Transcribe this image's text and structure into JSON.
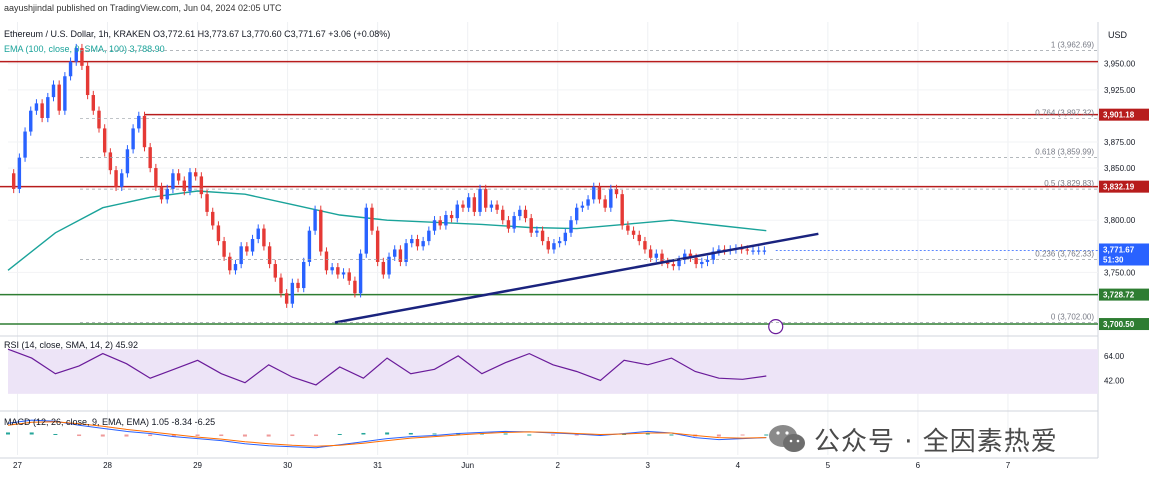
{
  "header": {
    "publisher": "aayushjindal published on TradingView.com, Jun 04, 2024 02:05 UTC",
    "symbol": "Ethereum / U.S. Dollar, 1h, KRAKEN O3,772.61 H3,773.67 L3,770.60 C3,771.67 +3.06 (+0.08%)",
    "ema": "EMA (100, close, 0, SMA, 100) 3,788.90",
    "rsi": "RSI (14, close, SMA, 14, 2) 45.92",
    "macd": "MACD (12, 26, close, 9, EMA, EMA) 1.05 -8.34 -6.25"
  },
  "currency": "USD",
  "colors": {
    "up": "#2962ff",
    "down": "#e53935",
    "resistance": "#b71c1c",
    "support": "#2e7d32",
    "ema": "#1aa39a",
    "trendline": "#1a237e",
    "rsi_line": "#6a1b9a",
    "rsi_band": "#ede4f7",
    "price_tag": "#2962ff"
  },
  "fib_levels": [
    {
      "label": "1 (3,962.69)",
      "price": 3962.69
    },
    {
      "label": "0.764 (3,897.32)",
      "price": 3897.32
    },
    {
      "label": "0.618 (3,859.99)",
      "price": 3859.99
    },
    {
      "label": "0.5 (3,829.83)",
      "price": 3829.83
    },
    {
      "label": "0.236 (3,762.33)",
      "price": 3762.33
    },
    {
      "label": "0 (3,702.00)",
      "price": 3702.0
    }
  ],
  "horizontal_levels": [
    {
      "kind": "resistance",
      "price": 3952,
      "tag": ""
    },
    {
      "kind": "resistance",
      "price": 3901.18,
      "tag": "3,901.18"
    },
    {
      "kind": "resistance",
      "price": 3832.19,
      "tag": "3,832.19"
    },
    {
      "kind": "support",
      "price": 3728.72,
      "tag": "3,728.72"
    },
    {
      "kind": "support",
      "price": 3700.5,
      "tag": "3,700.50"
    }
  ],
  "price_tag": {
    "value": "3,771.67",
    "sub": "51:30"
  },
  "watermark": "公众号 · 全因素热爱",
  "chart_data": {
    "type": "line",
    "title": "Ethereum / U.S. Dollar, 1h, KRAKEN",
    "xlabel": "",
    "ylabel": "USD",
    "x_ticks": [
      "27",
      "28",
      "29",
      "30",
      "31",
      "Jun",
      "2",
      "3",
      "4",
      "5",
      "6",
      "7"
    ],
    "y_ticks": [
      3950,
      3925,
      3875,
      3850,
      3800,
      3750
    ],
    "ylim": [
      3690,
      3990
    ],
    "grid": true,
    "series": [
      {
        "x": [
          0,
          0.06,
          0.12,
          0.18,
          0.24,
          0.3,
          0.36,
          0.42,
          0.48,
          0.54,
          0.6,
          0.66,
          0.72,
          0.78,
          0.84,
          0.9,
          0.96,
          1.02,
          1.08,
          1.14,
          1.2,
          1.26,
          1.32,
          1.38,
          1.44,
          1.5,
          1.56,
          1.62,
          1.68,
          1.74,
          1.8,
          1.86,
          1.92,
          1.98,
          2.04,
          2.1,
          2.16,
          2.22,
          2.28,
          2.34,
          2.4,
          2.46,
          2.52,
          2.58,
          2.64,
          2.7,
          2.76,
          2.82,
          2.88,
          2.94,
          3,
          3.06,
          3.12,
          3.18,
          3.24,
          3.3,
          3.36,
          3.42,
          3.48,
          3.54,
          3.6,
          3.66,
          3.72,
          3.78,
          3.84,
          3.9,
          3.96,
          4.02,
          4.08,
          4.14,
          4.2,
          4.26,
          4.32,
          4.38,
          4.44,
          4.5,
          4.56,
          4.62,
          4.68,
          4.74,
          4.8,
          4.86,
          4.92,
          4.98,
          5.04,
          5.1,
          5.16,
          5.22,
          5.28,
          5.34,
          5.4,
          5.46,
          5.52,
          5.58,
          5.64,
          5.7,
          5.76,
          5.82,
          5.88,
          5.94,
          6,
          6.06,
          6.12,
          6.18,
          6.24,
          6.3,
          6.36,
          6.42,
          6.48,
          6.54,
          6.6,
          6.66,
          6.72,
          6.78,
          6.84,
          6.9,
          6.96,
          7.02,
          7.08,
          7.14,
          7.2,
          7.26,
          7.32,
          7.38,
          7.44,
          7.5,
          7.56,
          7.62,
          7.68,
          7.74,
          7.8,
          7.86,
          7.92,
          7.98
        ],
        "values": [
          3845,
          3830,
          3860,
          3885,
          3905,
          3912,
          3898,
          3918,
          3930,
          3905,
          3938,
          3952,
          3965,
          3948,
          3920,
          3905,
          3888,
          3865,
          3848,
          3832,
          3845,
          3868,
          3888,
          3900,
          3870,
          3850,
          3832,
          3820,
          3830,
          3845,
          3838,
          3828,
          3846,
          3842,
          3825,
          3808,
          3795,
          3780,
          3765,
          3752,
          3758,
          3775,
          3770,
          3782,
          3792,
          3775,
          3758,
          3745,
          3730,
          3720,
          3740,
          3735,
          3760,
          3790,
          3810,
          3770,
          3752,
          3755,
          3748,
          3750,
          3742,
          3730,
          3768,
          3812,
          3790,
          3760,
          3748,
          3765,
          3772,
          3760,
          3778,
          3782,
          3775,
          3780,
          3790,
          3800,
          3795,
          3805,
          3802,
          3815,
          3812,
          3822,
          3808,
          3830,
          3812,
          3815,
          3810,
          3800,
          3792,
          3804,
          3810,
          3802,
          3788,
          3790,
          3780,
          3772,
          3778,
          3780,
          3788,
          3800,
          3812,
          3814,
          3820,
          3832,
          3820,
          3812,
          3830,
          3825,
          3795,
          3790,
          3786,
          3780,
          3772,
          3764,
          3768,
          3760,
          3758,
          3756,
          3762,
          3768,
          3764,
          3758,
          3760,
          3762,
          3770,
          3772,
          3771,
          3772,
          3773,
          3772,
          3771,
          3771,
          3771,
          3771
        ],
        "name": ""
      },
      {
        "x": [
          0,
          0.5,
          1,
          1.5,
          2,
          2.5,
          3,
          3.5,
          4,
          4.5,
          5,
          5.5,
          6,
          6.5,
          7,
          7.5,
          8
        ],
        "values": [
          3752,
          3788,
          3812,
          3822,
          3828,
          3825,
          3815,
          3805,
          3800,
          3798,
          3796,
          3793,
          3792,
          3796,
          3800,
          3795,
          3790
        ],
        "name": "EMA"
      }
    ],
    "rsi": {
      "ylim": [
        20,
        80
      ],
      "y_ticks": [
        64,
        42
      ],
      "x": [
        0,
        0.25,
        0.5,
        0.75,
        1,
        1.25,
        1.5,
        1.75,
        2,
        2.25,
        2.5,
        2.75,
        3,
        3.25,
        3.5,
        3.75,
        4,
        4.25,
        4.5,
        4.75,
        5,
        5.25,
        5.5,
        5.75,
        6,
        6.25,
        6.5,
        6.75,
        7,
        7.25,
        7.5,
        7.75,
        8
      ],
      "values": [
        70,
        62,
        48,
        55,
        66,
        57,
        44,
        52,
        60,
        48,
        40,
        56,
        45,
        38,
        54,
        44,
        62,
        48,
        52,
        64,
        48,
        58,
        66,
        56,
        50,
        42,
        60,
        56,
        62,
        50,
        44,
        43,
        46
      ]
    },
    "macd": {
      "ylim": [
        -40,
        40
      ],
      "x": [
        0,
        0.25,
        0.5,
        0.75,
        1,
        1.25,
        1.5,
        1.75,
        2,
        2.25,
        2.5,
        2.75,
        3,
        3.25,
        3.5,
        3.75,
        4,
        4.25,
        4.5,
        4.75,
        5,
        5.25,
        5.5,
        5.75,
        6,
        6.25,
        6.5,
        6.75,
        7,
        7.25,
        7.5,
        7.75,
        8
      ],
      "values": [
        22,
        28,
        26,
        18,
        12,
        6,
        2,
        -4,
        -8,
        -12,
        -18,
        -22,
        -24,
        -26,
        -20,
        -14,
        -8,
        -4,
        -2,
        2,
        4,
        6,
        5,
        3,
        1,
        -2,
        2,
        6,
        3,
        -6,
        -10,
        -8,
        -6
      ],
      "signal": [
        18,
        24,
        25,
        21,
        16,
        10,
        5,
        0,
        -5,
        -9,
        -14,
        -18,
        -21,
        -23,
        -21,
        -17,
        -12,
        -7,
        -4,
        -1,
        2,
        4,
        5,
        4,
        2,
        0,
        1,
        3,
        3,
        -2,
        -6,
        -7,
        -6
      ]
    }
  }
}
